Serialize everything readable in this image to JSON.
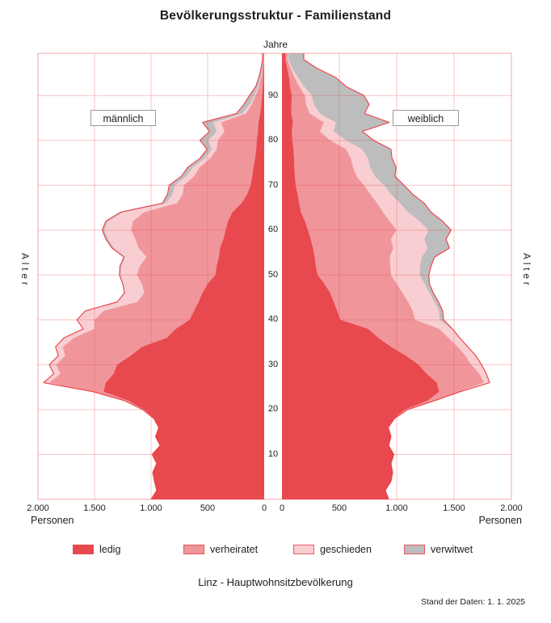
{
  "title": "Bevölkerungsstruktur - Familienstand",
  "axis": {
    "top_label": "Jahre",
    "y_label_left": "Alter",
    "y_label_right": "Alter",
    "x_label_left": "Personen",
    "x_label_right": "Personen"
  },
  "groups": {
    "male_label": "männlich",
    "female_label": "weiblich"
  },
  "footer": {
    "caption": "Linz - Hauptwohnsitzbevölkerung",
    "data_note": "Stand der Daten: 1. 1. 2025"
  },
  "legend": {
    "items": [
      {
        "label": "ledig",
        "color_key": "ledig"
      },
      {
        "label": "verheiratet",
        "color_key": "verheiratet"
      },
      {
        "label": "geschieden",
        "color_key": "geschieden"
      },
      {
        "label": "verwitwet",
        "color_key": "verwitwet"
      }
    ]
  },
  "colors": {
    "ledig": "#e8494f",
    "verheiratet": "#f0969b",
    "geschieden": "#f8ced2",
    "verwitwet": "#bdbdbd",
    "outline": "#ee3d45",
    "grid": "#e9494f",
    "text": "#1d1d1d",
    "box_border": "#9a9a9a"
  },
  "chart_data": {
    "type": "area",
    "variant": "population-pyramid",
    "title": "Bevölkerungsstruktur - Familienstand",
    "source_caption": "Linz - Hauptwohnsitzbevölkerung",
    "data_date": "1. 1. 2025",
    "x_axis": {
      "label": "Personen",
      "ticks": [
        0,
        500,
        1000,
        1500,
        2000
      ],
      "tick_labels": [
        "0",
        "500",
        "1.000",
        "1.500",
        "2.000"
      ],
      "max": 2000
    },
    "y_axis": {
      "label": "Alter",
      "unit": "Jahre",
      "ticks": [
        10,
        20,
        30,
        40,
        50,
        60,
        70,
        80,
        90
      ],
      "range": [
        0,
        100
      ]
    },
    "legend_position": "bottom",
    "grid": true,
    "age_step": 2,
    "ages": [
      0,
      2,
      4,
      6,
      8,
      10,
      12,
      14,
      16,
      18,
      20,
      22,
      24,
      26,
      28,
      30,
      32,
      34,
      36,
      38,
      40,
      42,
      44,
      46,
      48,
      50,
      52,
      54,
      56,
      58,
      60,
      62,
      64,
      66,
      68,
      70,
      72,
      74,
      76,
      78,
      80,
      82,
      84,
      86,
      88,
      90,
      92,
      94,
      96,
      98
    ],
    "series_order": [
      "ledig",
      "verheiratet",
      "geschieden",
      "verwitwet"
    ],
    "male": {
      "ledig": [
        1000,
        950,
        970,
        985,
        950,
        990,
        920,
        960,
        930,
        970,
        1060,
        1200,
        1420,
        1400,
        1330,
        1300,
        1180,
        1080,
        860,
        780,
        660,
        620,
        580,
        545,
        500,
        430,
        420,
        400,
        390,
        360,
        340,
        320,
        280,
        200,
        150,
        120,
        105,
        95,
        80,
        70,
        65,
        55,
        50,
        35,
        25,
        18,
        12,
        8,
        5,
        3
      ],
      "verheiratet": [
        0,
        0,
        0,
        0,
        0,
        0,
        0,
        0,
        2,
        5,
        10,
        30,
        80,
        500,
        470,
        540,
        580,
        700,
        820,
        720,
        840,
        800,
        540,
        515,
        580,
        695,
        680,
        640,
        720,
        780,
        835,
        840,
        780,
        570,
        570,
        590,
        515,
        475,
        395,
        350,
        345,
        295,
        330,
        125,
        85,
        57,
        33,
        20,
        10,
        5
      ],
      "geschieden": [
        0,
        0,
        0,
        0,
        0,
        0,
        0,
        0,
        0,
        0,
        5,
        5,
        10,
        48,
        55,
        58,
        58,
        63,
        88,
        98,
        152,
        158,
        175,
        170,
        165,
        145,
        165,
        188,
        220,
        240,
        240,
        220,
        190,
        100,
        90,
        80,
        70,
        60,
        50,
        45,
        86,
        70,
        70,
        30,
        20,
        13,
        7,
        4,
        2,
        1
      ],
      "verwitwet": [
        0,
        0,
        0,
        0,
        0,
        0,
        0,
        0,
        0,
        0,
        0,
        0,
        5,
        2,
        5,
        2,
        2,
        2,
        2,
        2,
        3,
        4,
        5,
        5,
        5,
        10,
        10,
        12,
        15,
        20,
        17,
        20,
        20,
        30,
        45,
        50,
        43,
        46,
        43,
        40,
        72,
        62,
        95,
        54,
        50,
        42,
        23,
        16,
        11,
        6
      ]
    },
    "female": {
      "ledig": [
        930,
        900,
        950,
        965,
        950,
        975,
        930,
        950,
        925,
        975,
        1070,
        1270,
        1370,
        1350,
        1260,
        1190,
        1080,
        950,
        840,
        750,
        510,
        480,
        450,
        420,
        370,
        310,
        295,
        285,
        270,
        250,
        225,
        200,
        165,
        150,
        135,
        120,
        112,
        108,
        105,
        100,
        90,
        85,
        95,
        80,
        82,
        85,
        70,
        62,
        45,
        30
      ],
      "verheiratet": [
        0,
        0,
        0,
        0,
        0,
        0,
        0,
        0,
        2,
        5,
        20,
        50,
        170,
        410,
        460,
        460,
        520,
        580,
        610,
        620,
        650,
        660,
        650,
        630,
        630,
        640,
        650,
        655,
        700,
        700,
        772,
        740,
        715,
        680,
        635,
        595,
        538,
        512,
        495,
        460,
        330,
        245,
        270,
        160,
        128,
        115,
        80,
        48,
        30,
        18
      ],
      "geschieden": [
        0,
        0,
        0,
        0,
        0,
        0,
        0,
        0,
        0,
        0,
        5,
        5,
        10,
        45,
        58,
        85,
        86,
        86,
        95,
        110,
        215,
        230,
        230,
        235,
        245,
        250,
        260,
        280,
        300,
        290,
        280,
        260,
        220,
        200,
        180,
        175,
        160,
        150,
        150,
        140,
        140,
        120,
        105,
        90,
        70,
        60,
        45,
        30,
        17,
        8
      ],
      "verwitwet": [
        0,
        0,
        0,
        0,
        0,
        0,
        0,
        0,
        0,
        0,
        0,
        5,
        5,
        5,
        4,
        5,
        4,
        4,
        5,
        6,
        35,
        30,
        35,
        35,
        40,
        80,
        95,
        110,
        190,
        190,
        197,
        200,
        200,
        210,
        190,
        175,
        175,
        225,
        210,
        250,
        240,
        250,
        465,
        390,
        480,
        455,
        365,
        330,
        218,
        134
      ]
    }
  }
}
